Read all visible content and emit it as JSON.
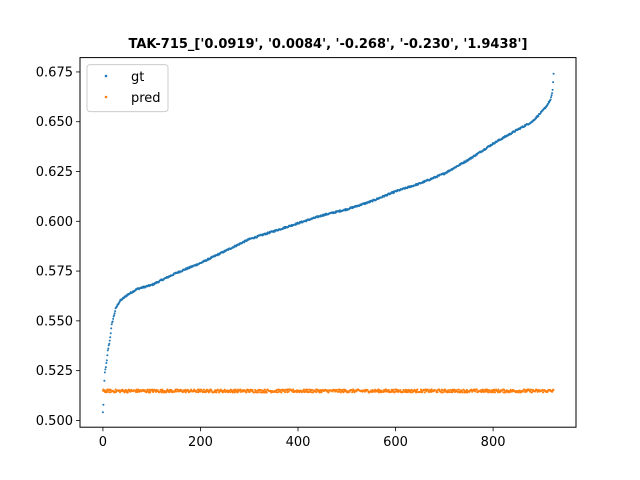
{
  "chart_data": {
    "type": "scatter",
    "title": "TAK-715_['0.0919', '0.0084', '-0.268', '-0.230', '1.9438']",
    "xlabel": "",
    "ylabel": "",
    "xlim": [
      -47,
      970
    ],
    "ylim": [
      0.4966,
      0.6822
    ],
    "xticks": [
      0,
      200,
      400,
      600,
      800
    ],
    "xtick_labels": [
      "0",
      "200",
      "400",
      "600",
      "800"
    ],
    "yticks": [
      0.5,
      0.525,
      0.55,
      0.575,
      0.6,
      0.625,
      0.65,
      0.675
    ],
    "ytick_labels": [
      "0.500",
      "0.525",
      "0.550",
      "0.575",
      "0.600",
      "0.625",
      "0.650",
      "0.675"
    ],
    "grid": false,
    "legend": {
      "position": "top-left",
      "entries": [
        "gt",
        "pred"
      ]
    },
    "n_points": 925,
    "series": [
      {
        "name": "gt",
        "color": "#1f77b4",
        "sorted_curve": {
          "x": [
            0,
            1,
            2,
            4,
            6,
            8,
            10,
            14,
            18,
            22,
            26,
            30,
            35,
            40,
            50,
            70,
            100,
            150,
            200,
            250,
            300,
            350,
            400,
            450,
            500,
            550,
            600,
            650,
            700,
            750,
            800,
            850,
            880,
            900,
            910,
            915,
            918,
            920,
            922,
            924
          ],
          "y": [
            0.504,
            0.508,
            0.515,
            0.524,
            0.527,
            0.53,
            0.535,
            0.54,
            0.548,
            0.552,
            0.556,
            0.558,
            0.56,
            0.561,
            0.563,
            0.566,
            0.568,
            0.574,
            0.579,
            0.585,
            0.591,
            0.595,
            0.599,
            0.603,
            0.606,
            0.61,
            0.615,
            0.619,
            0.624,
            0.631,
            0.639,
            0.646,
            0.65,
            0.655,
            0.658,
            0.66,
            0.661,
            0.663,
            0.666,
            0.674
          ]
        }
      },
      {
        "name": "pred",
        "color": "#ff7f0e",
        "center": 0.5148,
        "spread": 0.0008
      }
    ]
  }
}
